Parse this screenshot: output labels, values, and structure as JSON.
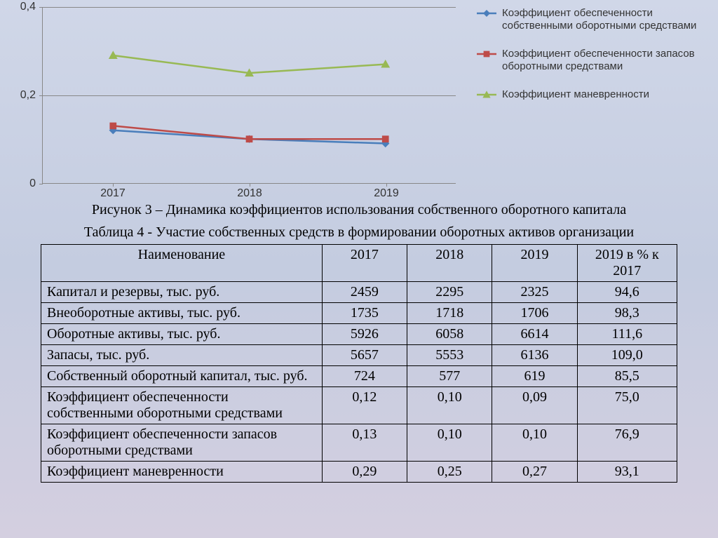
{
  "chart": {
    "type": "line",
    "background": "transparent",
    "grid_color": "#888888",
    "axis_color": "#888888",
    "x_categories": [
      "2017",
      "2018",
      "2019"
    ],
    "ylim": [
      0,
      0.4
    ],
    "yticks": [
      0,
      0.2,
      0.4
    ],
    "ytick_labels": [
      "0",
      "0,2",
      "0,4"
    ],
    "tick_fontsize": 16,
    "series": [
      {
        "name": "Коэффициент обеспеченности собственными оборотными средствами",
        "color": "#4a7ebb",
        "marker": "diamond",
        "marker_size": 8,
        "line_width": 2.5,
        "values": [
          0.12,
          0.1,
          0.09
        ]
      },
      {
        "name": "Коэффициент обеспеченности запасов оборотными средствами",
        "color": "#be4b48",
        "marker": "square",
        "marker_size": 7,
        "line_width": 2.5,
        "values": [
          0.13,
          0.1,
          0.1
        ]
      },
      {
        "name": "Коэффициент маневренности",
        "color": "#98b954",
        "marker": "triangle",
        "marker_size": 9,
        "line_width": 2.5,
        "values": [
          0.29,
          0.25,
          0.27
        ]
      }
    ],
    "legend_fontsize": 15
  },
  "captions": {
    "figure": "Рисунок 3 – Динамика коэффициентов использования собственного оборотного капитала",
    "table": "Таблица 4 - Участие собственных средств в формировании оборотных активов организации"
  },
  "table": {
    "columns": [
      "Наименование",
      "2017",
      "2018",
      "2019",
      "2019 в % к 2017"
    ],
    "rows": [
      [
        "Капитал и резервы, тыс. руб.",
        "2459",
        "2295",
        "2325",
        "94,6"
      ],
      [
        "Внеоборотные активы, тыс. руб.",
        "1735",
        "1718",
        "1706",
        "98,3"
      ],
      [
        "Оборотные активы, тыс. руб.",
        "5926",
        "6058",
        "6614",
        "111,6"
      ],
      [
        "Запасы, тыс. руб.",
        "5657",
        "5553",
        "6136",
        "109,0"
      ],
      [
        "Собственный оборотный капитал, тыс. руб.",
        "724",
        "577",
        "619",
        "85,5"
      ],
      [
        "Коэффициент обеспеченности собственными оборотными средствами",
        "0,12",
        "0,10",
        "0,09",
        "75,0"
      ],
      [
        "Коэффициент обеспеченности запасов оборотными средствами",
        "0,13",
        "0,10",
        "0,10",
        "76,9"
      ],
      [
        "Коэффициент маневренности",
        "0,29",
        "0,25",
        "0,27",
        "93,1"
      ]
    ],
    "font_size": 20,
    "border_color": "#000000"
  }
}
